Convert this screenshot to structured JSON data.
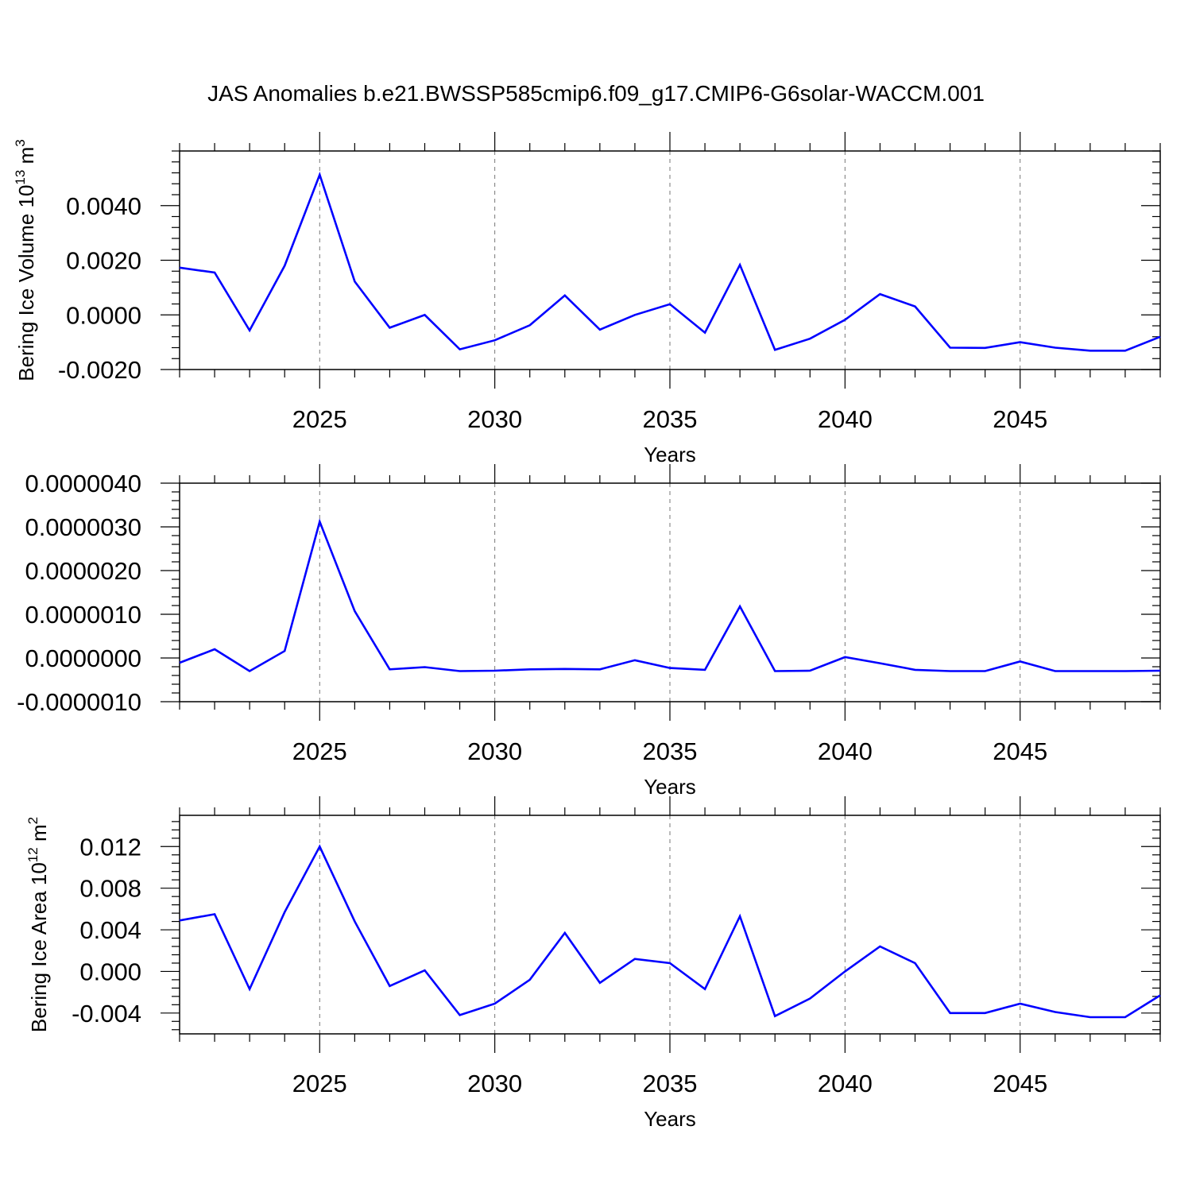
{
  "title": "JAS Anomalies b.e21.BWSSP585cmip6.f09_g17.CMIP6-G6solar-WACCM.001",
  "chart_data": [
    {
      "type": "line",
      "title": "JAS Anomalies b.e21.BWSSP585cmip6.f09_g17.CMIP6-G6solar-WACCM.001",
      "xlabel": "Years",
      "ylabel": "Bering Ice Volume 10",
      "ylabel_exp": "13",
      "ylabel_unit": " m",
      "ylabel_unit_exp": "3",
      "xlim": [
        2021,
        2049
      ],
      "ylim": [
        -0.002,
        0.006
      ],
      "yticks": [
        -0.002,
        0.0,
        0.002,
        0.004
      ],
      "ytick_labels": [
        "-0.0020",
        "0.0000",
        "0.0020",
        "0.0040"
      ],
      "xticks": [
        2025,
        2030,
        2035,
        2040,
        2045
      ],
      "xtick_labels": [
        "2025",
        "2030",
        "2035",
        "2040",
        "2045"
      ],
      "grid": "x-dashed",
      "color": "#0000ff",
      "x": [
        2021,
        2022,
        2023,
        2024,
        2025,
        2026,
        2027,
        2028,
        2029,
        2030,
        2031,
        2032,
        2033,
        2034,
        2035,
        2036,
        2037,
        2038,
        2039,
        2040,
        2041,
        2042,
        2043,
        2044,
        2045,
        2046,
        2047,
        2048,
        2049
      ],
      "values": [
        0.00173,
        0.00155,
        -0.00057,
        0.0018,
        0.00513,
        0.00122,
        -0.00047,
        0.0,
        -0.00126,
        -0.00093,
        -0.00038,
        0.00071,
        -0.00054,
        0.0,
        0.00039,
        -0.00065,
        0.00183,
        -0.00128,
        -0.00087,
        -0.00018,
        0.00076,
        0.00031,
        -0.0012,
        -0.00121,
        -0.001,
        -0.0012,
        -0.00131,
        -0.00131,
        -0.0008
      ]
    },
    {
      "type": "line",
      "xlabel": "Years",
      "ylabel": "",
      "xlim": [
        2021,
        2049
      ],
      "ylim": [
        -1e-06,
        4e-06
      ],
      "yticks": [
        -1e-06,
        0.0,
        1e-06,
        2e-06,
        3e-06,
        4e-06
      ],
      "ytick_labels": [
        "-0.0000010",
        "0.0000000",
        "0.0000010",
        "0.0000020",
        "0.0000030",
        "0.0000040"
      ],
      "xticks": [
        2025,
        2030,
        2035,
        2040,
        2045
      ],
      "xtick_labels": [
        "2025",
        "2030",
        "2035",
        "2040",
        "2045"
      ],
      "grid": "x-dashed",
      "color": "#0000ff",
      "x": [
        2021,
        2022,
        2023,
        2024,
        2025,
        2026,
        2027,
        2028,
        2029,
        2030,
        2031,
        2032,
        2033,
        2034,
        2035,
        2036,
        2037,
        2038,
        2039,
        2040,
        2041,
        2042,
        2043,
        2044,
        2045,
        2046,
        2047,
        2048,
        2049
      ],
      "values": [
        -1.1e-07,
        2e-07,
        -3e-07,
        1.6e-07,
        3.12e-06,
        1.07e-06,
        -2.6e-07,
        -2.1e-07,
        -3e-07,
        -2.9e-07,
        -2.6e-07,
        -2.5e-07,
        -2.6e-07,
        -5e-08,
        -2.3e-07,
        -2.7e-07,
        1.18e-06,
        -3e-07,
        -2.9e-07,
        2e-08,
        -1.2e-07,
        -2.7e-07,
        -3e-07,
        -3e-07,
        -8e-08,
        -3e-07,
        -3e-07,
        -3e-07,
        -2.9e-07
      ]
    },
    {
      "type": "line",
      "xlabel": "Years",
      "ylabel": "Bering Ice Area 10",
      "ylabel_exp": "12",
      "ylabel_unit": " m",
      "ylabel_unit_exp": "2",
      "xlim": [
        2021,
        2049
      ],
      "ylim": [
        -0.006,
        0.015
      ],
      "yticks": [
        -0.004,
        0.0,
        0.004,
        0.008,
        0.012
      ],
      "ytick_labels": [
        "-0.004",
        "0.000",
        "0.004",
        "0.008",
        "0.012"
      ],
      "xticks": [
        2025,
        2030,
        2035,
        2040,
        2045
      ],
      "xtick_labels": [
        "2025",
        "2030",
        "2035",
        "2040",
        "2045"
      ],
      "grid": "x-dashed",
      "color": "#0000ff",
      "x": [
        2021,
        2022,
        2023,
        2024,
        2025,
        2026,
        2027,
        2028,
        2029,
        2030,
        2031,
        2032,
        2033,
        2034,
        2035,
        2036,
        2037,
        2038,
        2039,
        2040,
        2041,
        2042,
        2043,
        2044,
        2045,
        2046,
        2047,
        2048,
        2049
      ],
      "values": [
        0.0049,
        0.0055,
        -0.0017,
        0.0057,
        0.012,
        0.0048,
        -0.0014,
        0.0001,
        -0.0042,
        -0.0031,
        -0.0008,
        0.0037,
        -0.0011,
        0.0012,
        0.0008,
        -0.0017,
        0.0053,
        -0.0043,
        -0.0026,
        0.0,
        0.0024,
        0.0008,
        -0.004,
        -0.004,
        -0.0031,
        -0.0039,
        -0.0044,
        -0.0044,
        -0.0023
      ]
    }
  ]
}
